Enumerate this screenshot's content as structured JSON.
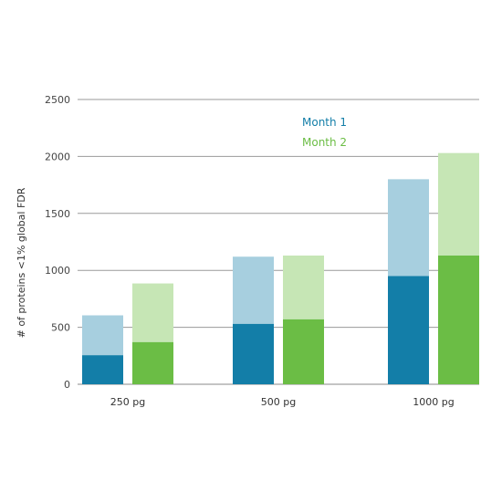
{
  "chart_data": {
    "type": "bar",
    "stacked": true,
    "categories": [
      "250 pg",
      "500 pg",
      "1000 pg"
    ],
    "ylabel": "# of proteins <1% global  FDR",
    "xlabel": "",
    "ylim": [
      0,
      2500
    ],
    "yticks": [
      0,
      500,
      1000,
      1500,
      2000,
      2500
    ],
    "grid": true,
    "legend_position": "top-center",
    "series": [
      {
        "name": "Month 1",
        "color": "#137ea8",
        "light_color": "#a7cfdf",
        "lower_values": [
          255,
          530,
          950
        ],
        "total_values": [
          605,
          1120,
          1800
        ]
      },
      {
        "name": "Month 2",
        "color": "#6bbd45",
        "light_color": "#c6e6b5",
        "lower_values": [
          370,
          570,
          1130
        ],
        "total_values": [
          885,
          1130,
          2030
        ]
      }
    ]
  }
}
